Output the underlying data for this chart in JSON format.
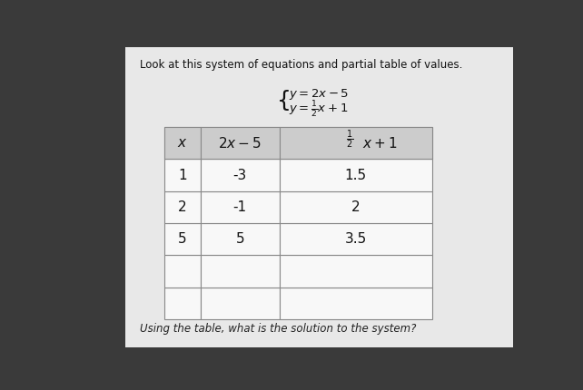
{
  "bg_color": "#3a3a3a",
  "card_color": "#e8e8e8",
  "top_text": "Look at this system of equations and partial table of values.",
  "top_text_color": "#111111",
  "bottom_text": "Using the table, what is the solution to the system?",
  "bottom_text_color": "#222222",
  "table_data": [
    [
      "1",
      "-3",
      "1.5"
    ],
    [
      "2",
      "-1",
      "2"
    ],
    [
      "5",
      "5",
      "3.5"
    ],
    [
      "",
      "",
      ""
    ],
    [
      "",
      "",
      ""
    ]
  ],
  "font_color": "#111111",
  "header_bg": "#cccccc",
  "row_bg": "#f8f8f8",
  "table_border": "#888888"
}
